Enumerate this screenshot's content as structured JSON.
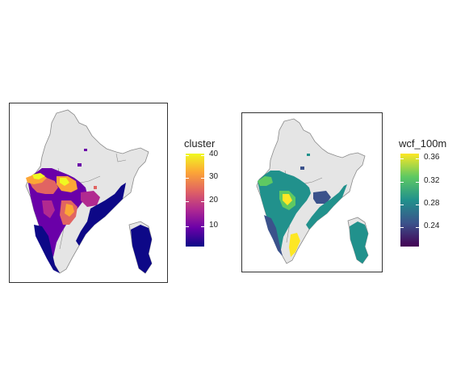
{
  "maps": [
    {
      "legend": {
        "title": "cluster",
        "ticks": [
          "40",
          "30",
          "20",
          "10"
        ],
        "palette": "plasma",
        "colors": [
          "#f0f921",
          "#fca636",
          "#e16462",
          "#b12a90",
          "#6a00a8",
          "#0d0887"
        ]
      }
    },
    {
      "legend": {
        "title": "wcf_100m",
        "ticks": [
          "0.36",
          "0.32",
          "0.28",
          "0.24"
        ],
        "palette": "viridis",
        "colors": [
          "#fde725",
          "#5ec962",
          "#21918c",
          "#3b528b",
          "#440154"
        ]
      }
    }
  ],
  "colors": {
    "land": "#e5e5e5",
    "border": "#8a8a8a"
  }
}
